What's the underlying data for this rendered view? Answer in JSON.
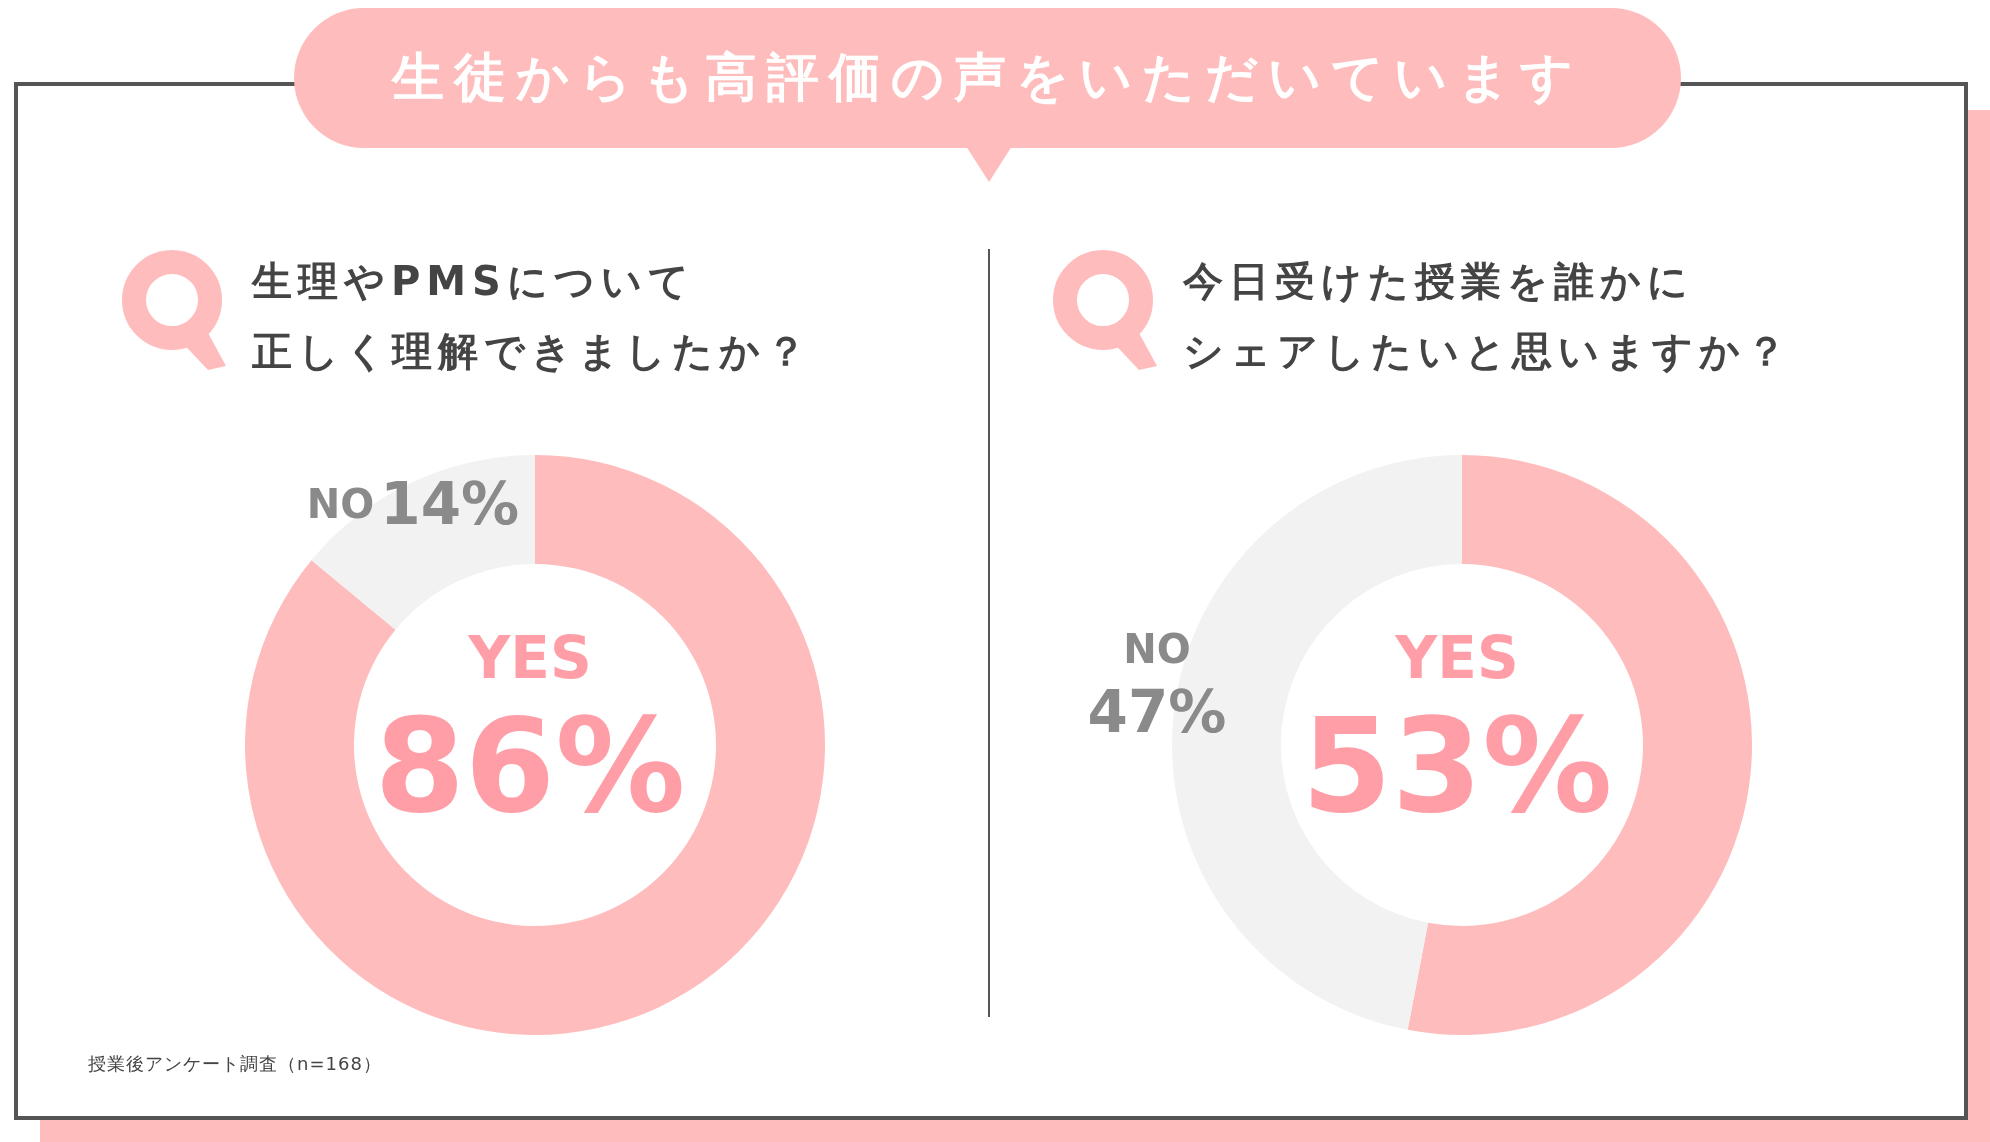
{
  "chart_data": [
    {
      "type": "donut",
      "title": "生理やPMSについて",
      "subtitle": "正しく理解できましたか？",
      "categories": [
        "YES",
        "NO"
      ],
      "values": [
        86,
        14
      ],
      "colors": [
        "#ffbcbc",
        "#f2f2f2"
      ],
      "value_labels": [
        "86%",
        "14%"
      ],
      "annotations": [
        "生徒からも高評価の声をいただいています",
        "授業後アンケート調査（n=168）"
      ]
    },
    {
      "type": "donut",
      "title": "今日受けた授業を誰かに",
      "subtitle": "シェアしたいと思いますか？",
      "categories": [
        "YES",
        "NO"
      ],
      "values": [
        53,
        47
      ],
      "colors": [
        "#ffbcbc",
        "#f2f2f2"
      ],
      "value_labels": [
        "53%",
        "47%"
      ]
    }
  ]
}
